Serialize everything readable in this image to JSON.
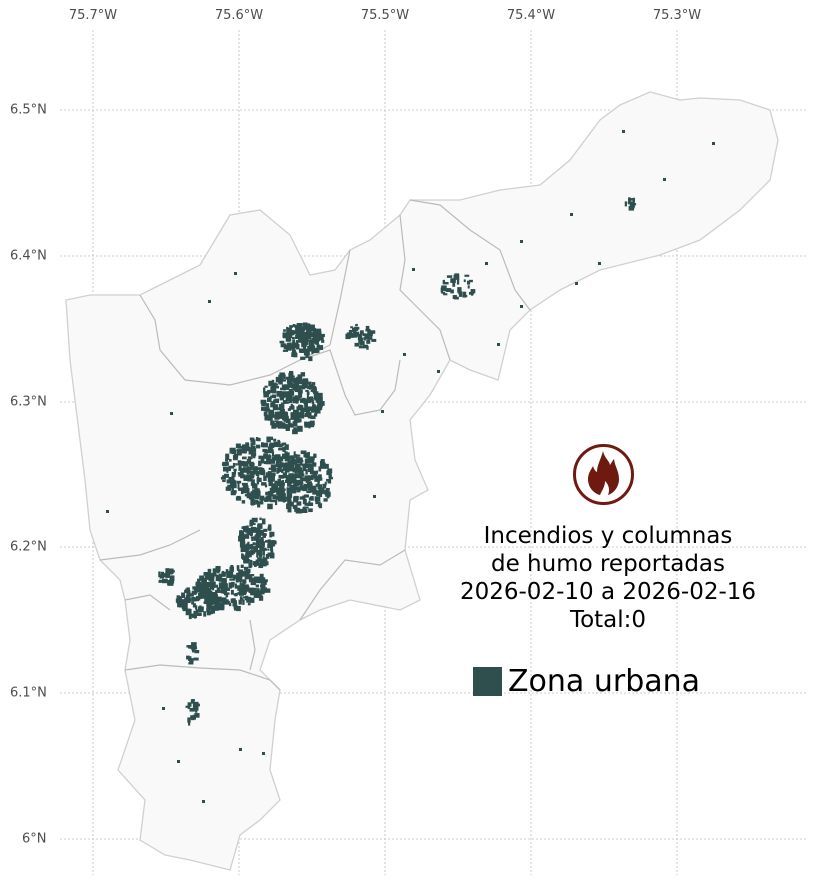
{
  "axes": {
    "x_ticks": [
      "75.7°W",
      "75.6°W",
      "75.5°W",
      "75.4°W",
      "75.3°W"
    ],
    "y_ticks": [
      "6.5°N",
      "6.4°N",
      "6.3°N",
      "6.2°N",
      "6.1°N",
      "6°N"
    ]
  },
  "title_lines": [
    "Incendios y columnas",
    "de humo reportadas",
    "2026-02-10 a 2026-02-16",
    "Total:0"
  ],
  "legend": {
    "label": "Zona urbana",
    "color": "#2f4f4f"
  },
  "icon": {
    "name": "fire-icon",
    "color": "#6e1a10"
  },
  "colors": {
    "region_fill": "#f9f9f9",
    "region_border": "#c8c8c8",
    "grid": "#bdbdbd"
  }
}
